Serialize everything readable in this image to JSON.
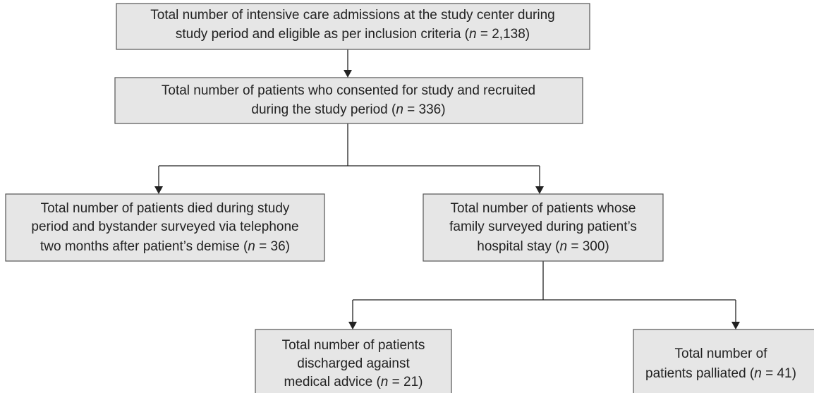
{
  "nodes": [
    {
      "lines": [
        [
          "Total number of intensive care admissions at the study center during"
        ],
        [
          "study period and eligible as per inclusion criteria (",
          "n",
          " = 2,138)"
        ]
      ]
    },
    {
      "lines": [
        [
          "Total number of patients who consented for study and recruited"
        ],
        [
          "during the study period (",
          "n",
          " = 336)"
        ]
      ]
    },
    {
      "lines": [
        [
          "Total number of patients died during study"
        ],
        [
          "period and bystander surveyed via telephone"
        ],
        [
          "two months after patient’s demise (",
          "n",
          " = 36)"
        ]
      ]
    },
    {
      "lines": [
        [
          "Total number of patients whose"
        ],
        [
          "family surveyed during patient’s"
        ],
        [
          "hospital stay (",
          "n",
          " = 300)"
        ]
      ]
    },
    {
      "lines": [
        [
          "Total number of patients"
        ],
        [
          "discharged against"
        ],
        [
          "medical advice (",
          "n",
          " = 21)"
        ]
      ]
    },
    {
      "lines": [
        [
          "Total number of"
        ],
        [
          "patients palliated (",
          "n",
          " = 41)"
        ]
      ]
    }
  ]
}
